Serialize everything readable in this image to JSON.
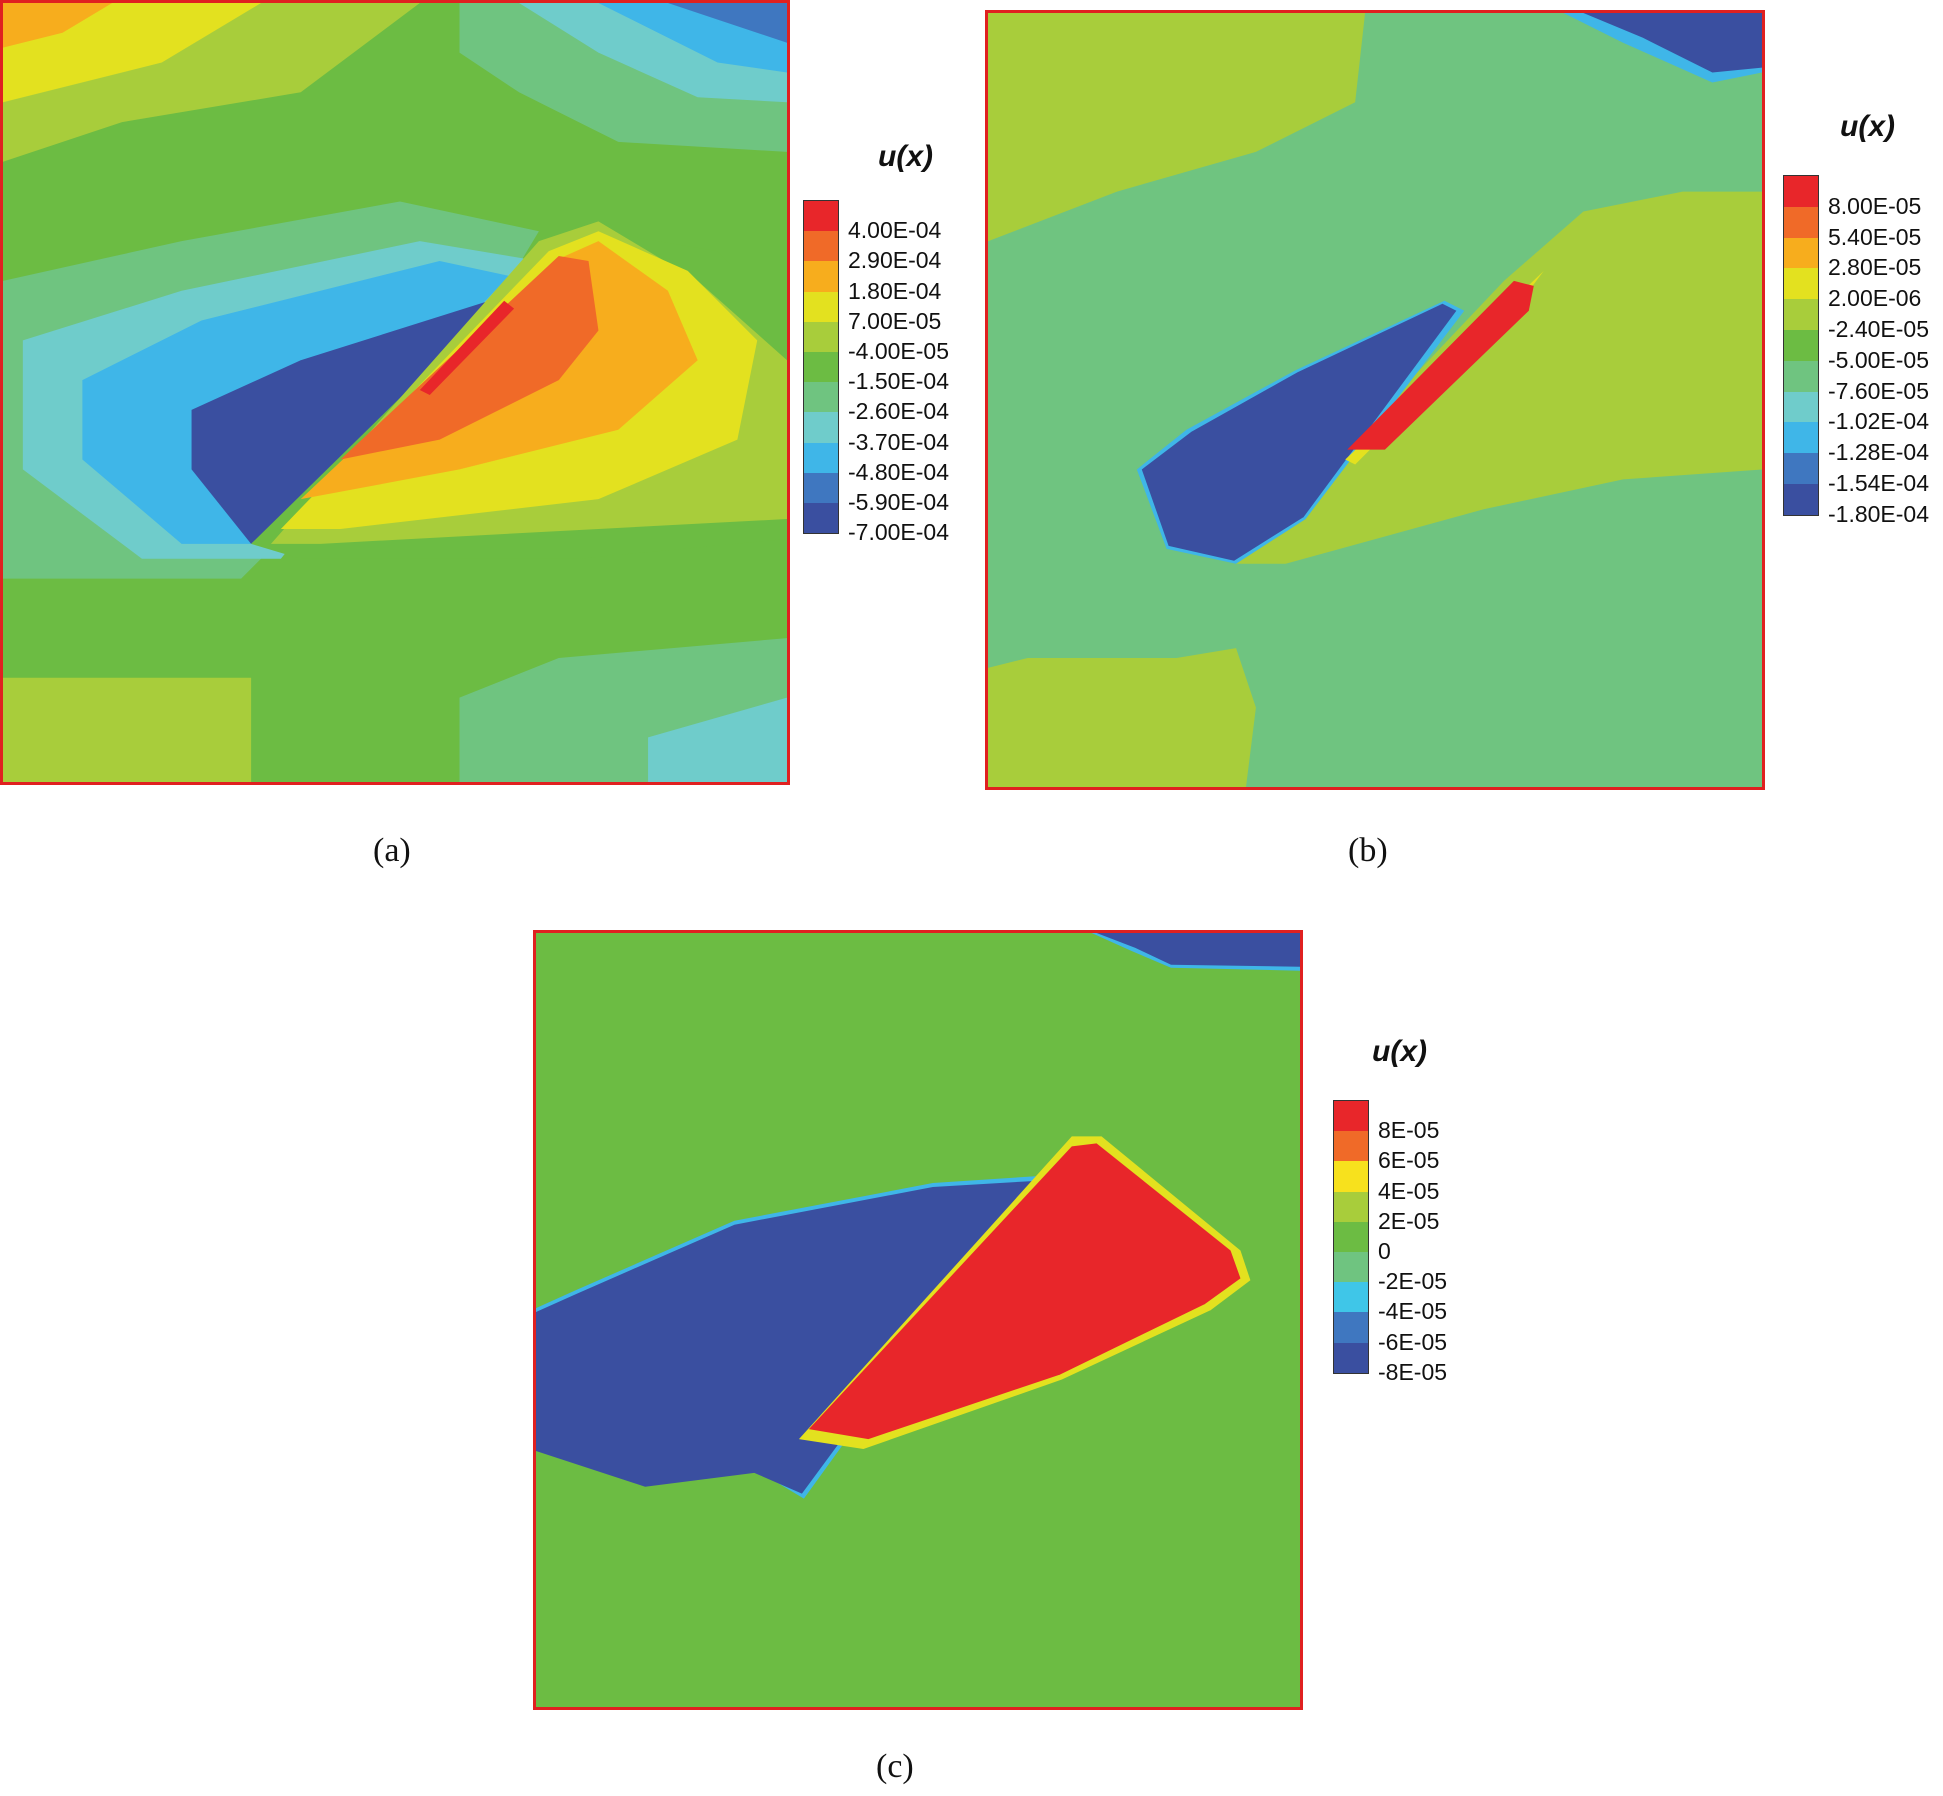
{
  "figure_labels": {
    "a": "(a)",
    "b": "(b)",
    "c": "(c)"
  },
  "chart_data": [
    {
      "type": "heatmap",
      "panel": "(a)",
      "legend_title": "u(x)",
      "legend_levels": [
        "4.00E-04",
        "2.90E-04",
        "1.80E-04",
        "7.00E-05",
        "-4.00E-05",
        "-1.50E-04",
        "-2.60E-04",
        "-3.70E-04",
        "-4.80E-04",
        "-5.90E-04",
        "-7.00E-04"
      ],
      "legend_colors": [
        "#e8262a",
        "#f06a28",
        "#f7ad1d",
        "#e3e11f",
        "#a8cd3b",
        "#6cbc43",
        "#6fc480",
        "#6fcccb",
        "#3fb6e8",
        "#3f77c0",
        "#3a4fa0"
      ]
    },
    {
      "type": "heatmap",
      "panel": "(b)",
      "legend_title": "u(x)",
      "legend_levels": [
        "8.00E-05",
        "5.40E-05",
        "2.80E-05",
        "2.00E-06",
        "-2.40E-05",
        "-5.00E-05",
        "-7.60E-05",
        "-1.02E-04",
        "-1.28E-04",
        "-1.54E-04",
        "-1.80E-04"
      ],
      "legend_colors": [
        "#e8262a",
        "#f06a28",
        "#f7ad1d",
        "#e3e11f",
        "#a8cd3b",
        "#6cbc43",
        "#6fc480",
        "#6fcccb",
        "#3fb6e8",
        "#3f77c0",
        "#3a4fa0"
      ]
    },
    {
      "type": "heatmap",
      "panel": "(c)",
      "legend_title": "u(x)",
      "legend_levels": [
        "8E-05",
        "6E-05",
        "4E-05",
        "2E-05",
        "0",
        "-2E-05",
        "-4E-05",
        "-6E-05",
        "-8E-05"
      ],
      "legend_colors": [
        "#e8262a",
        "#f06a28",
        "#f7e11d",
        "#a8cd3b",
        "#6cbc43",
        "#6fc480",
        "#3fc6e8",
        "#3f77c0",
        "#3a4fa0"
      ]
    }
  ]
}
